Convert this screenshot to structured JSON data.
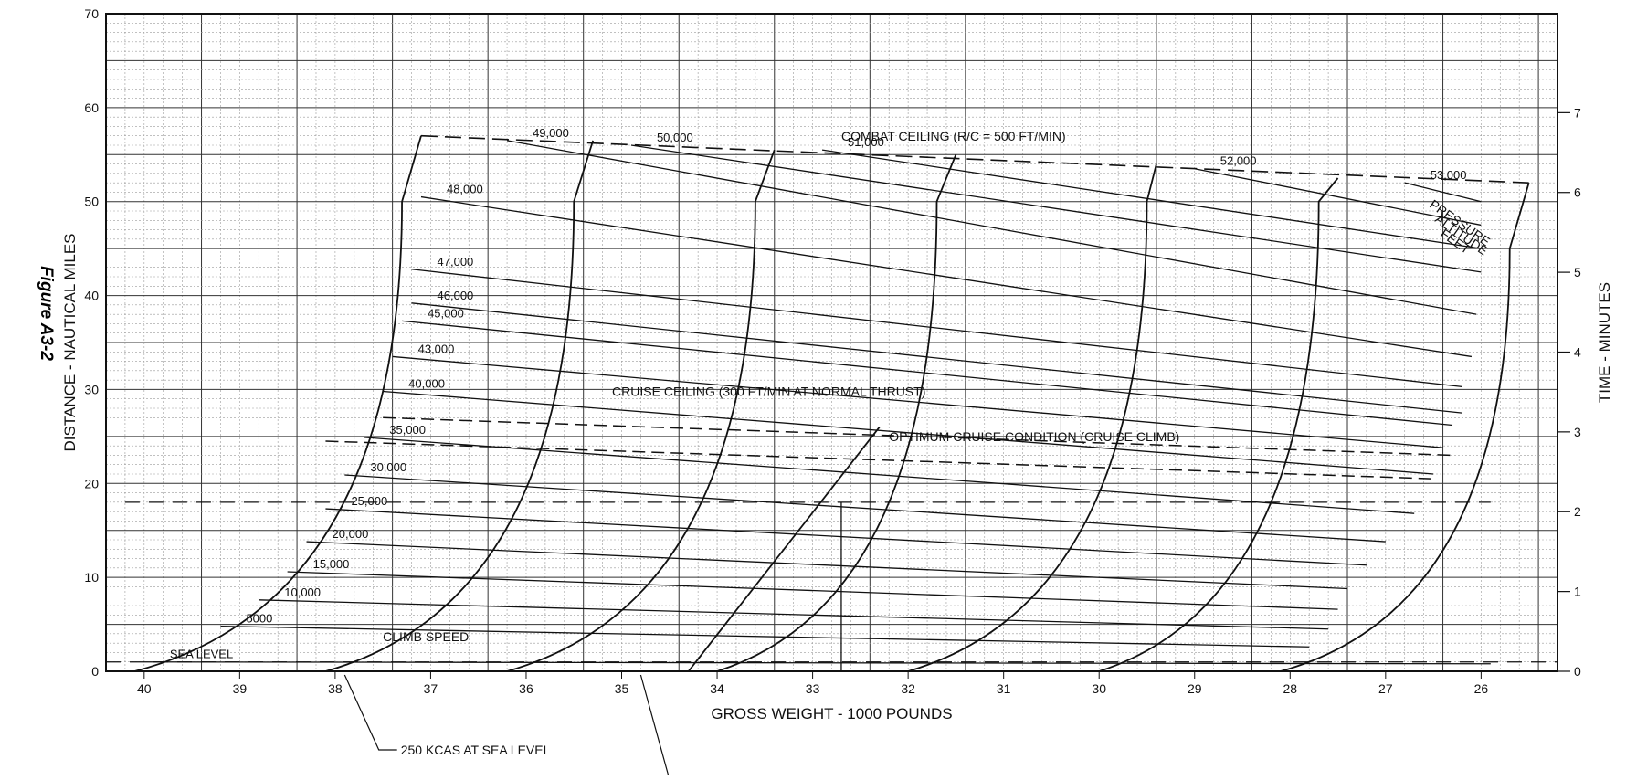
{
  "figure_label": "Figure A3-2",
  "chart_data": {
    "type": "line",
    "xlabel": "GROSS WEIGHT - 1000 POUNDS",
    "ylabel_left": "DISTANCE - NAUTICAL MILES",
    "ylabel_right": "TIME - MINUTES",
    "x_reversed": true,
    "xlim": [
      40.4,
      25.2
    ],
    "ylim": [
      0,
      70
    ],
    "y2lim": [
      0,
      8.24
    ],
    "grid": true,
    "x_ticks": [
      40,
      39,
      38,
      37,
      36,
      35,
      34,
      33,
      32,
      31,
      30,
      29,
      28,
      27,
      26
    ],
    "y_ticks": [
      0,
      10,
      20,
      30,
      40,
      50,
      60,
      70
    ],
    "y2_ticks": [
      0,
      1,
      2,
      3,
      4,
      5,
      6,
      7
    ],
    "pressure_altitude_label": [
      "PRESSURE",
      "ALTITUDE",
      "FEET"
    ],
    "altitude_lines": [
      {
        "name": "SEA LEVEL",
        "x": [
          40.0,
          25.9
        ],
        "y": [
          1.0,
          0.8
        ]
      },
      {
        "name": "5000",
        "x": [
          39.2,
          27.8
        ],
        "y": [
          4.8,
          2.6
        ]
      },
      {
        "name": "10,000",
        "x": [
          38.8,
          27.6
        ],
        "y": [
          7.6,
          4.5
        ]
      },
      {
        "name": "15,000",
        "x": [
          38.5,
          27.5
        ],
        "y": [
          10.6,
          6.6
        ]
      },
      {
        "name": "20,000",
        "x": [
          38.3,
          27.4
        ],
        "y": [
          13.8,
          8.8
        ]
      },
      {
        "name": "25,000",
        "x": [
          38.1,
          27.2
        ],
        "y": [
          17.3,
          11.3
        ]
      },
      {
        "name": "30,000",
        "x": [
          37.9,
          27.0
        ],
        "y": [
          20.9,
          13.8
        ]
      },
      {
        "name": "35,000",
        "x": [
          37.7,
          26.7
        ],
        "y": [
          24.9,
          16.8
        ]
      },
      {
        "name": "40,000",
        "x": [
          37.5,
          26.5
        ],
        "y": [
          29.8,
          21.0
        ]
      },
      {
        "name": "43,000",
        "x": [
          37.4,
          26.4
        ],
        "y": [
          33.5,
          23.8
        ]
      },
      {
        "name": "45,000",
        "x": [
          37.3,
          26.3
        ],
        "y": [
          37.3,
          26.2
        ]
      },
      {
        "name": "46,000",
        "x": [
          37.2,
          26.2
        ],
        "y": [
          39.2,
          27.5
        ]
      },
      {
        "name": "47,000",
        "x": [
          37.2,
          26.2
        ],
        "y": [
          42.8,
          30.3
        ]
      },
      {
        "name": "48,000",
        "x": [
          37.1,
          26.1
        ],
        "y": [
          50.5,
          33.5
        ]
      },
      {
        "name": "49,000",
        "x": [
          36.2,
          26.05
        ],
        "y": [
          56.5,
          38.0
        ]
      },
      {
        "name": "50,000",
        "x": [
          34.9,
          26.0
        ],
        "y": [
          56.0,
          42.5
        ]
      },
      {
        "name": "51,000",
        "x": [
          32.9,
          26.0
        ],
        "y": [
          55.5,
          45.0
        ]
      },
      {
        "name": "52,000",
        "x": [
          29.0,
          26.0
        ],
        "y": [
          53.5,
          47.5
        ]
      },
      {
        "name": "53,000",
        "x": [
          26.8,
          26.0
        ],
        "y": [
          52.0,
          50.0
        ]
      }
    ],
    "weight_curves": [
      {
        "x": [
          40.1,
          37.3,
          37.1
        ],
        "y": [
          0,
          50,
          57
        ]
      },
      {
        "x": [
          38.1,
          35.5,
          35.3
        ],
        "y": [
          0,
          50,
          56.5
        ]
      },
      {
        "x": [
          36.2,
          33.6,
          33.4
        ],
        "y": [
          0,
          50,
          55.5
        ]
      },
      {
        "x": [
          34.3,
          32.3
        ],
        "y": [
          0,
          26
        ]
      },
      {
        "x": [
          34.0,
          31.7,
          31.5
        ],
        "y": [
          0,
          50,
          55
        ]
      },
      {
        "x": [
          32.0,
          29.5,
          29.4
        ],
        "y": [
          0,
          50,
          54
        ]
      },
      {
        "x": [
          30.0,
          27.7,
          27.5
        ],
        "y": [
          0,
          50,
          52.5
        ]
      },
      {
        "x": [
          28.1,
          25.7,
          25.5
        ],
        "y": [
          0,
          45,
          52
        ]
      }
    ],
    "annotations": [
      "COMBAT CEILING (R/C = 500 FT/MIN)",
      "CRUISE CEILING (300 FT/MIN AT NORMAL THRUST)",
      "OPTIMUM CRUISE CONDITION (CRUISE CLIMB)",
      "CLIMB SPEED",
      "250 KCAS AT SEA LEVEL",
      "SEA LEVEL TAKEOFF SPEED"
    ]
  }
}
